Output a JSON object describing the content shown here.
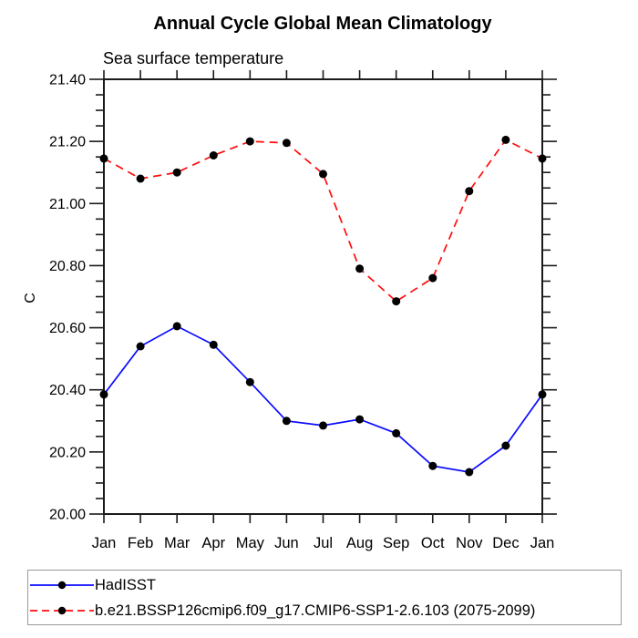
{
  "page": {
    "title": "Annual Cycle Global Mean Climatology",
    "subtitle": "Sea surface temperature"
  },
  "chart_data": {
    "type": "line",
    "title": "Annual Cycle Global Mean Climatology",
    "subtitle": "Sea surface temperature",
    "ylabel": "C",
    "xlabel": "",
    "categories": [
      "Jan",
      "Feb",
      "Mar",
      "Apr",
      "May",
      "Jun",
      "Jul",
      "Aug",
      "Sep",
      "Oct",
      "Nov",
      "Dec",
      "Jan"
    ],
    "series": [
      {
        "name": "HadISST",
        "color": "#0a0aff",
        "line_style": "solid",
        "marker": "black-dot",
        "values": [
          20.385,
          20.54,
          20.605,
          20.545,
          20.425,
          20.3,
          20.285,
          20.305,
          20.26,
          20.155,
          20.135,
          20.22,
          20.385
        ]
      },
      {
        "name": "b.e21.BSSP126cmip6.f09_g17.CMIP6-SSP1-2.6.103 (2075-2099)",
        "color": "#ff0d0d",
        "line_style": "dashed",
        "marker": "black-dot",
        "values": [
          21.145,
          21.08,
          21.1,
          21.155,
          21.2,
          21.195,
          21.095,
          20.79,
          20.685,
          20.76,
          21.04,
          21.205,
          21.145
        ]
      }
    ],
    "ylim": [
      20.0,
      21.4
    ],
    "ytick_major": 0.2,
    "ytick_minor": 0.05,
    "ytick_labels": [
      "20.00",
      "20.20",
      "20.40",
      "20.60",
      "20.80",
      "21.00",
      "21.20",
      "21.40"
    ],
    "grid": false,
    "frame": "box-with-outward-ticks",
    "legend_position": "bottom-left-box",
    "marker_color": "#000000",
    "axis_color": "#1a1a1a"
  }
}
